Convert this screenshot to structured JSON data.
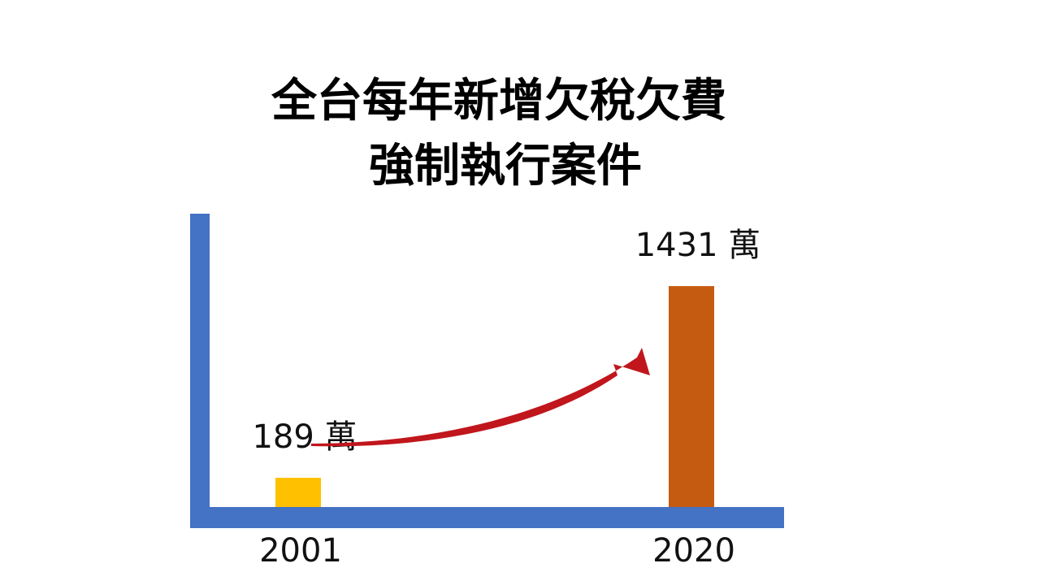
{
  "chart_data": {
    "type": "bar",
    "title": [
      "全台每年新增欠稅欠費",
      "強制執行案件"
    ],
    "categories": [
      "2001",
      "2020"
    ],
    "values": [
      189,
      1431
    ],
    "value_labels": [
      "189 萬",
      "1431 萬"
    ],
    "colors": [
      "#ffc000",
      "#c55a11"
    ],
    "axis_color": "#4472c4",
    "ylim": [
      0,
      1900
    ]
  }
}
